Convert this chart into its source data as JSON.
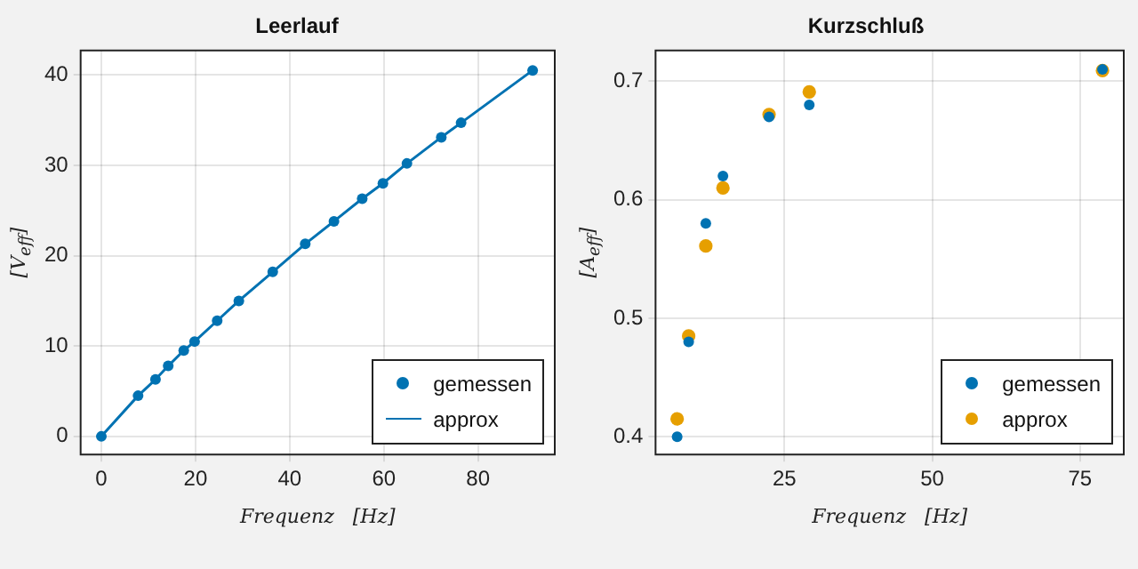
{
  "chart_data": [
    {
      "type": "scatter",
      "title": "Leerlauf",
      "xlabel": "Frequenz   [Hz]",
      "ylabel": "[V$_{eff}$]",
      "x": [
        0,
        7.8,
        11.5,
        14.2,
        17.5,
        19.8,
        24.6,
        29.2,
        36.4,
        43.3,
        49.4,
        55.4,
        59.8,
        64.9,
        72.2,
        76.4,
        91.6
      ],
      "series": [
        {
          "name": "gemessen",
          "color": "#0072b2",
          "marker": "circle",
          "values": [
            0,
            4.5,
            6.3,
            7.8,
            9.5,
            10.5,
            12.8,
            15.0,
            18.2,
            21.3,
            23.8,
            26.3,
            28.0,
            30.2,
            33.1,
            34.7,
            40.5
          ]
        },
        {
          "name": "approx",
          "type": "line",
          "color": "#0072b2",
          "marker": "none",
          "line_style": "solid",
          "values": [
            0,
            4.5,
            6.3,
            7.8,
            9.5,
            10.5,
            12.8,
            15.0,
            18.2,
            21.3,
            23.8,
            26.3,
            28.0,
            30.2,
            33.1,
            34.7,
            40.5
          ]
        }
      ],
      "xlim": [
        -4.4,
        96.3
      ],
      "ylim": [
        -2,
        42.7
      ],
      "xticks": [
        0,
        20,
        40,
        60,
        80
      ],
      "yticks": [
        0,
        10,
        20,
        30,
        40
      ],
      "grid": true,
      "legend": "bottom right"
    },
    {
      "type": "scatter",
      "title": "Kurzschluß",
      "xlabel": "Frequenz   [Hz]",
      "ylabel": "[A$_{eff}$]",
      "x": [
        6.85,
        8.8,
        11.7,
        14.6,
        22.4,
        29.2,
        78.8
      ],
      "series": [
        {
          "name": "gemessen",
          "color": "#0072b2",
          "values": [
            0.4,
            0.48,
            0.58,
            0.62,
            0.67,
            0.68,
            0.71
          ]
        },
        {
          "name": "approx",
          "color": "#e69f00",
          "values": [
            0.415,
            0.485,
            0.561,
            0.61,
            0.672,
            0.691,
            0.709
          ]
        }
      ],
      "marker": "circle",
      "xlim": [
        3.2,
        82.4
      ],
      "ylim": [
        0.385,
        0.726
      ],
      "xticks": [
        25,
        50,
        75
      ],
      "yticks": [
        0.4,
        0.5,
        0.6,
        0.7
      ],
      "grid": true,
      "legend": "bottom right"
    }
  ]
}
